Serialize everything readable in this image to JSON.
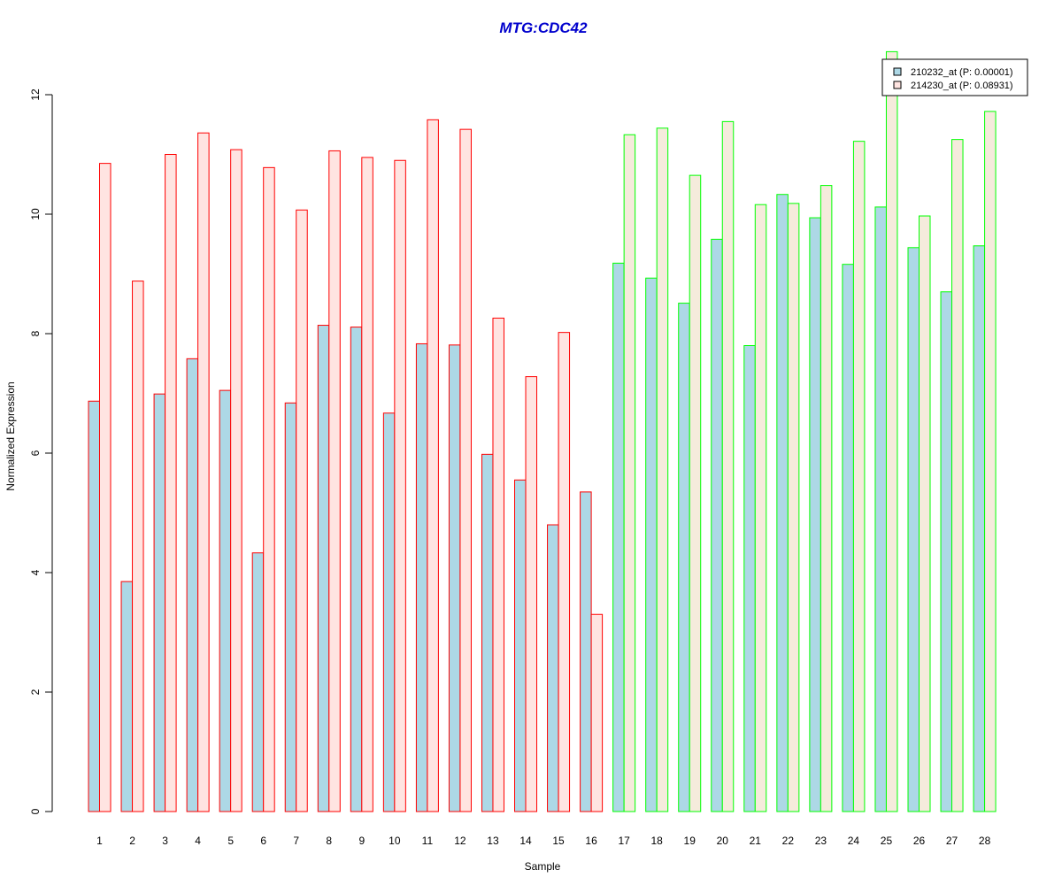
{
  "chart_data": {
    "type": "bar",
    "title": "MTG:CDC42",
    "xlabel": "Sample",
    "ylabel": "Normalized Expression",
    "ylim": [
      0,
      12
    ],
    "yticks": [
      0,
      2,
      4,
      6,
      8,
      10,
      12
    ],
    "grid": false,
    "legend_position": "top-right",
    "categories": [
      "1",
      "2",
      "3",
      "4",
      "5",
      "6",
      "7",
      "8",
      "9",
      "10",
      "11",
      "12",
      "13",
      "14",
      "15",
      "16",
      "17",
      "18",
      "19",
      "20",
      "21",
      "22",
      "23",
      "24",
      "25",
      "26",
      "27",
      "28"
    ],
    "series": [
      {
        "name": "210232_at (P: 0.00001)",
        "values": [
          6.87,
          3.85,
          6.99,
          7.58,
          7.05,
          4.33,
          6.84,
          8.14,
          8.11,
          6.67,
          7.83,
          7.81,
          5.98,
          5.55,
          4.8,
          5.35,
          9.18,
          8.93,
          8.51,
          9.58,
          7.8,
          10.33,
          9.94,
          9.16,
          10.12,
          9.44,
          8.7,
          9.47
        ]
      },
      {
        "name": "214230_at (P: 0.08931)",
        "values": [
          10.85,
          8.88,
          11.0,
          11.36,
          11.08,
          10.78,
          10.07,
          11.06,
          10.95,
          10.9,
          11.58,
          11.42,
          8.26,
          7.28,
          8.02,
          3.3,
          11.33,
          11.44,
          10.65,
          11.55,
          10.16,
          10.18,
          10.48,
          11.22,
          12.72,
          9.97,
          11.25,
          11.72
        ]
      }
    ],
    "group_sizes": [
      16,
      12
    ],
    "colors": {
      "series1_fill": "#add8e6",
      "series2_fill_group1": "#ffe4e1",
      "series2_fill_group2": "#f5ebdc",
      "outline_group1": "#ff0000",
      "outline_group2": "#00ff00",
      "title": "#0000cd",
      "legend_series1_fill": "#add8e6",
      "legend_series2_fill": "#ffe4e1"
    }
  }
}
